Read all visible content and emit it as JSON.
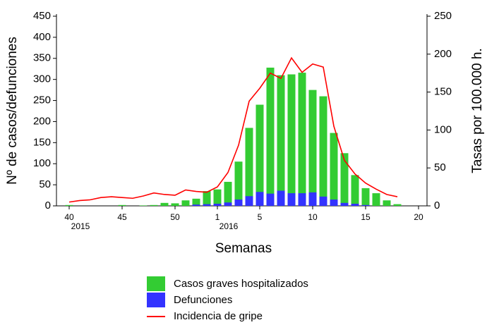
{
  "chart_data": {
    "type": "bar",
    "x_label": "Semanas",
    "y_label": "Nº de casos/defunciones",
    "y2_label": "Tasas por 100.000 h.",
    "categories": [
      "40",
      null,
      null,
      null,
      null,
      "45",
      null,
      null,
      null,
      null,
      "50",
      null,
      null,
      null,
      "1",
      null,
      null,
      null,
      "5",
      null,
      null,
      null,
      null,
      "10",
      null,
      null,
      null,
      null,
      "15",
      null,
      null,
      null,
      null,
      "20"
    ],
    "x_sublabels": [
      "2015",
      null,
      null,
      null,
      null,
      null,
      null,
      null,
      null,
      null,
      null,
      null,
      null,
      null,
      "2016",
      null,
      null,
      null,
      null,
      null,
      null,
      null,
      null,
      null,
      null,
      null,
      null,
      null,
      null,
      null,
      null,
      null,
      null,
      null
    ],
    "series": [
      {
        "name": "Casos graves hospitalizados",
        "type": "bar",
        "color": "#33cc33",
        "values": [
          2,
          0,
          0,
          0,
          0,
          2,
          0,
          1,
          2,
          7,
          6,
          13,
          17,
          35,
          39,
          57,
          105,
          185,
          240,
          328,
          310,
          312,
          316,
          275,
          260,
          173,
          125,
          73,
          42,
          30,
          13,
          4,
          0,
          0
        ]
      },
      {
        "name": "Defunciones",
        "type": "bar",
        "color": "#3333ff",
        "values": [
          0,
          0,
          0,
          0,
          0,
          0,
          0,
          0,
          0,
          0,
          0,
          0,
          3,
          4,
          5,
          8,
          15,
          23,
          33,
          29,
          36,
          30,
          30,
          32,
          22,
          15,
          7,
          5,
          2,
          0,
          0,
          0,
          0,
          0
        ]
      },
      {
        "name": "Incidencia de gripe",
        "type": "line",
        "axis": "y2",
        "color": "#ff0000",
        "values": [
          5,
          7,
          8,
          11,
          12,
          11,
          10,
          13,
          17,
          15,
          14,
          21,
          19,
          18,
          25,
          44,
          80,
          138,
          155,
          175,
          168,
          195,
          176,
          187,
          183,
          105,
          60,
          42,
          30,
          22,
          15,
          12,
          null,
          null
        ]
      }
    ],
    "ylim": [
      0,
      450
    ],
    "yticks": [
      0,
      50,
      100,
      150,
      200,
      250,
      300,
      350,
      400,
      450
    ],
    "y2lim": [
      0,
      250
    ],
    "y2ticks": [
      0,
      50,
      100,
      150,
      200,
      250
    ]
  }
}
